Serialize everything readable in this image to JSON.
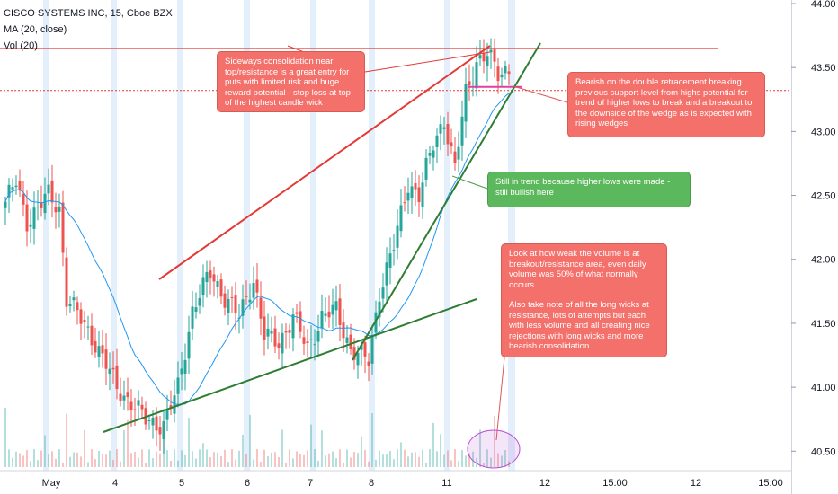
{
  "legend": {
    "symbol": "CISCO SYSTEMS INC, 15, Cboe BZX",
    "ma": "MA (20, close)",
    "vol": "Vol (20)"
  },
  "annotations": {
    "consolidation": "Sideways consolidation near top/resistance is a great entry for puts with limited risk and huge reward potential - stop loss at top of the highest candle wick",
    "bearish": "Bearish on the double retracement breaking previous support level from highs potential for trend of higher lows to break and a breakout to the downside of the wedge as is expected with rising wedges",
    "trend": "Still in trend because higher lows were made - still bullish here",
    "volume_1": "Look at how weak the volume is at breakout/resistance area, even daily volume was 50% of what normally occurs",
    "volume_2": "Also take note of all the long wicks at resistance, lots of attempts but each with less volume and all creating nice rejections with long wicks and more bearish consolidation"
  },
  "colors": {
    "up": "#26a69a",
    "down": "#ef5350",
    "ma": "#2196f3",
    "resistance": "#e53935",
    "trendline": "#2e7d32",
    "callout_red": "#f4706b",
    "callout_green": "#5cb85c",
    "session_band": "#dbe9fb",
    "ellipse": "#b84fd6"
  },
  "chart_data": {
    "type": "candlestick",
    "price_axis": {
      "ticks": [
        "44.00",
        "43.50",
        "43.00",
        "42.50",
        "42.00",
        "41.50",
        "41.00",
        "40.50"
      ],
      "ylim": [
        40.2,
        44.0
      ]
    },
    "x_ticks": [
      "May",
      "4",
      "5",
      "6",
      "7",
      "8",
      "11",
      "12",
      "15:00",
      "12",
      "15:00"
    ],
    "resistance_level": 43.65,
    "support_level": 43.32,
    "anchors": [
      [
        0,
        42.45
      ],
      [
        3,
        42.6
      ],
      [
        6,
        42.3
      ],
      [
        12,
        42.5
      ],
      [
        15,
        42.4
      ],
      [
        17,
        41.7
      ],
      [
        24,
        41.4
      ],
      [
        31,
        41.0
      ],
      [
        39,
        40.75
      ],
      [
        44,
        40.7
      ],
      [
        48,
        41.0
      ],
      [
        52,
        41.6
      ],
      [
        57,
        41.9
      ],
      [
        61,
        41.7
      ],
      [
        65,
        41.55
      ],
      [
        69,
        41.85
      ],
      [
        72,
        41.4
      ],
      [
        76,
        41.35
      ],
      [
        80,
        41.55
      ],
      [
        84,
        41.3
      ],
      [
        88,
        41.55
      ],
      [
        92,
        41.6
      ],
      [
        96,
        41.3
      ],
      [
        101,
        41.2
      ],
      [
        104,
        41.75
      ],
      [
        108,
        42.1
      ],
      [
        112,
        42.6
      ],
      [
        115,
        42.5
      ],
      [
        119,
        42.9
      ],
      [
        122,
        43.1
      ],
      [
        125,
        42.7
      ],
      [
        128,
        43.3
      ],
      [
        131,
        43.55
      ],
      [
        134,
        43.6
      ],
      [
        137,
        43.45
      ],
      [
        140,
        43.5
      ]
    ],
    "series": [
      {
        "name": "MA (20, close)",
        "type": "line"
      },
      {
        "name": "Vol (20)",
        "type": "volume"
      }
    ]
  }
}
